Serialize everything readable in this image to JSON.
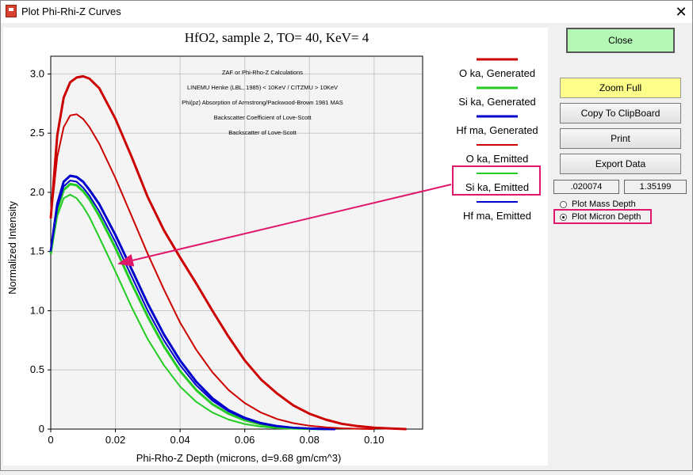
{
  "window": {
    "title": "Plot Phi-Rhi-Z Curves",
    "close_glyph": "✕",
    "icon": "zaf-app-icon"
  },
  "buttons": {
    "close": "Close",
    "zoom_full": "Zoom Full",
    "copy": "Copy To ClipBoard",
    "print": "Print",
    "export": "Export Data"
  },
  "readouts": {
    "x": ".020074",
    "y": "1.35199"
  },
  "radios": {
    "mass": {
      "label": "Plot Mass Depth",
      "checked": false
    },
    "micron": {
      "label": "Plot Micron Depth",
      "checked": true
    }
  },
  "colors": {
    "red": "#cc0000",
    "green": "#22cc22",
    "blue": "#0000cc",
    "highlight": "#e0186c",
    "close_button": "#b4f7b4",
    "zoom_button": "#fdfd8a"
  },
  "chart_data": {
    "type": "line",
    "title": "HfO2, sample 2, TO= 40, KeV= 4",
    "xlabel": "Phi-Rho-Z Depth (microns, d=9.68 gm/cm^3)",
    "ylabel": "Normalized Intensity",
    "xlim": [
      0,
      0.115
    ],
    "ylim": [
      0,
      3.15
    ],
    "xticks": [
      "0",
      "0.02",
      "0.04",
      "0.06",
      "0.08",
      "0.10"
    ],
    "xtick_values": [
      0,
      0.02,
      0.04,
      0.06,
      0.08,
      0.1
    ],
    "yticks": [
      "0",
      "0.5",
      "1.0",
      "1.5",
      "2.0",
      "2.5",
      "3.0"
    ],
    "ytick_values": [
      0,
      0.5,
      1.0,
      1.5,
      2.0,
      2.5,
      3.0
    ],
    "grid": true,
    "legend_position": "right",
    "annotations": [
      "ZAF or Phi-Rho-Z Calculations",
      "LINEMU   Henke (LBL, 1985) < 10KeV / CITZMU > 10KeV",
      "Phi(pz)  Absorption  of Armstrong/Packwood-Brown 1981 MAS",
      "Backscatter  Coefficient of Love-Scott",
      "Backscatter of Love-Scott"
    ],
    "series": [
      {
        "name": "O  ka, Generated",
        "color": "#cc0000",
        "width": 3,
        "x": [
          0,
          0.002,
          0.004,
          0.006,
          0.008,
          0.01,
          0.012,
          0.015,
          0.02,
          0.025,
          0.03,
          0.035,
          0.04,
          0.045,
          0.05,
          0.055,
          0.06,
          0.065,
          0.07,
          0.075,
          0.08,
          0.085,
          0.09,
          0.095,
          0.1,
          0.105,
          0.11
        ],
        "y": [
          1.78,
          2.48,
          2.8,
          2.93,
          2.97,
          2.98,
          2.96,
          2.88,
          2.62,
          2.3,
          1.96,
          1.68,
          1.45,
          1.23,
          1.0,
          0.78,
          0.58,
          0.42,
          0.3,
          0.2,
          0.13,
          0.08,
          0.045,
          0.025,
          0.012,
          0.005,
          0.0
        ]
      },
      {
        "name": "Si ka, Generated",
        "color": "#22cc22",
        "width": 3,
        "x": [
          0,
          0.002,
          0.004,
          0.006,
          0.008,
          0.01,
          0.012,
          0.015,
          0.02,
          0.025,
          0.03,
          0.035,
          0.04,
          0.045,
          0.05,
          0.055,
          0.06,
          0.065,
          0.07,
          0.075,
          0.08,
          0.085
        ],
        "y": [
          1.48,
          1.85,
          2.02,
          2.07,
          2.06,
          2.01,
          1.94,
          1.8,
          1.53,
          1.23,
          0.95,
          0.7,
          0.49,
          0.33,
          0.21,
          0.13,
          0.075,
          0.04,
          0.02,
          0.008,
          0.003,
          0.0
        ]
      },
      {
        "name": "Hf ma, Generated",
        "color": "#0000cc",
        "width": 3,
        "x": [
          0,
          0.002,
          0.004,
          0.006,
          0.008,
          0.01,
          0.012,
          0.015,
          0.02,
          0.025,
          0.03,
          0.035,
          0.04,
          0.045,
          0.05,
          0.055,
          0.06,
          0.065,
          0.07,
          0.075,
          0.08,
          0.085,
          0.088
        ],
        "y": [
          1.5,
          1.9,
          2.09,
          2.14,
          2.13,
          2.09,
          2.02,
          1.9,
          1.64,
          1.35,
          1.06,
          0.8,
          0.58,
          0.4,
          0.26,
          0.16,
          0.095,
          0.05,
          0.025,
          0.01,
          0.004,
          0.001,
          0.0
        ]
      },
      {
        "name": "O  ka, Emitted",
        "color": "#cc0000",
        "width": 2,
        "x": [
          0,
          0.002,
          0.004,
          0.006,
          0.008,
          0.01,
          0.012,
          0.015,
          0.02,
          0.025,
          0.03,
          0.035,
          0.04,
          0.045,
          0.05,
          0.055,
          0.06,
          0.065,
          0.07,
          0.075,
          0.08,
          0.085,
          0.09,
          0.095,
          0.1
        ],
        "y": [
          1.78,
          2.3,
          2.55,
          2.65,
          2.66,
          2.62,
          2.55,
          2.41,
          2.12,
          1.8,
          1.48,
          1.18,
          0.9,
          0.67,
          0.48,
          0.33,
          0.22,
          0.14,
          0.085,
          0.05,
          0.028,
          0.015,
          0.007,
          0.003,
          0.0
        ]
      },
      {
        "name": "Si ka, Emitted",
        "color": "#22cc22",
        "width": 2,
        "x": [
          0,
          0.002,
          0.004,
          0.006,
          0.008,
          0.01,
          0.012,
          0.015,
          0.02,
          0.025,
          0.03,
          0.035,
          0.04,
          0.045,
          0.05,
          0.055,
          0.06,
          0.065,
          0.07,
          0.075,
          0.08
        ],
        "y": [
          1.48,
          1.8,
          1.95,
          1.98,
          1.95,
          1.88,
          1.79,
          1.62,
          1.33,
          1.03,
          0.76,
          0.54,
          0.36,
          0.23,
          0.14,
          0.08,
          0.043,
          0.021,
          0.009,
          0.003,
          0.0
        ]
      },
      {
        "name": "Hf ma, Emitted",
        "color": "#0000cc",
        "width": 2,
        "x": [
          0,
          0.002,
          0.004,
          0.006,
          0.008,
          0.01,
          0.012,
          0.015,
          0.02,
          0.025,
          0.03,
          0.035,
          0.04,
          0.045,
          0.05,
          0.055,
          0.06,
          0.065,
          0.07,
          0.075,
          0.08,
          0.085
        ],
        "y": [
          1.5,
          1.87,
          2.05,
          2.1,
          2.09,
          2.04,
          1.97,
          1.84,
          1.58,
          1.29,
          1.0,
          0.75,
          0.54,
          0.37,
          0.24,
          0.15,
          0.088,
          0.047,
          0.023,
          0.01,
          0.004,
          0.0
        ]
      }
    ]
  }
}
